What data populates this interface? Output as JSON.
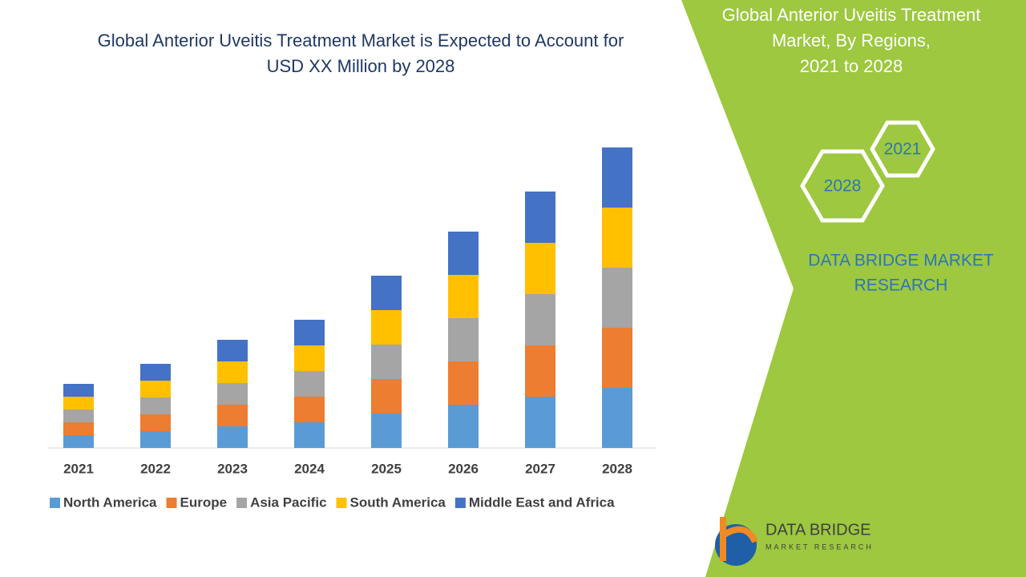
{
  "chart_data": {
    "type": "bar",
    "stacked": true,
    "title": [
      "Global Anterior Uveitis Treatment Market is Expected to Account for",
      "USD XX Million by 2028"
    ],
    "categories": [
      "2021",
      "2022",
      "2023",
      "2024",
      "2025",
      "2026",
      "2027",
      "2028"
    ],
    "series": [
      {
        "name": "North America",
        "color": "#5b9bd5",
        "values": [
          16,
          21,
          27,
          32,
          43,
          54,
          64,
          75
        ]
      },
      {
        "name": "Europe",
        "color": "#ed7d31",
        "values": [
          16,
          21,
          27,
          32,
          43,
          54,
          64,
          75
        ]
      },
      {
        "name": "Asia Pacific",
        "color": "#a5a5a5",
        "values": [
          16,
          21,
          27,
          32,
          43,
          54,
          64,
          75
        ]
      },
      {
        "name": "South America",
        "color": "#ffc000",
        "values": [
          16,
          21,
          27,
          32,
          43,
          54,
          64,
          75
        ]
      },
      {
        "name": "Middle East and Africa",
        "color": "#4472c4",
        "values": [
          16,
          21,
          27,
          32,
          43,
          54,
          64,
          75
        ]
      }
    ]
  },
  "panel": {
    "title": [
      "Global Anterior Uveitis Treatment",
      "Market, By Regions,",
      "2021 to 2028"
    ],
    "hex_start": "2021",
    "hex_end": "2028",
    "brand": [
      "DATA BRIDGE MARKET",
      "RESEARCH"
    ],
    "logo": [
      "DATA BRIDGE",
      "MARKET RESEARCH"
    ]
  }
}
